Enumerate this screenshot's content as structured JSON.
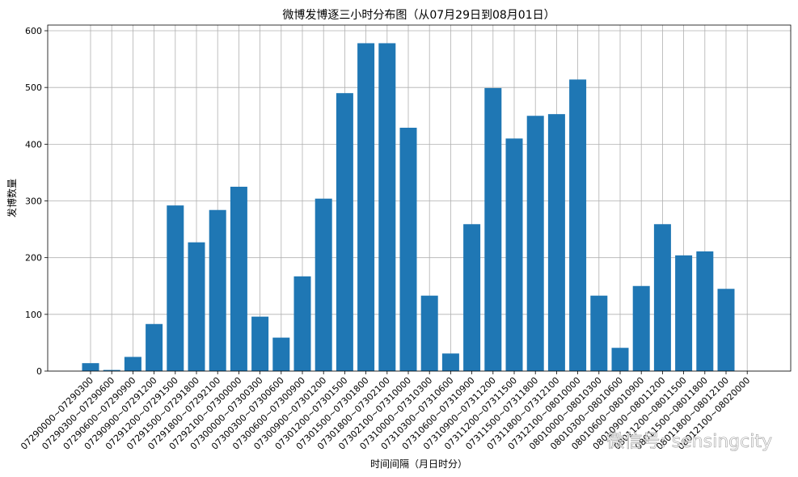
{
  "chart_data": {
    "type": "bar",
    "title": "微博发博逐三小时分布图（从07月29日到08月01日）",
    "xlabel": "时间间隔（月日时分）",
    "ylabel": "发博数量",
    "ylim": [
      0,
      610
    ],
    "yticks": [
      0,
      100,
      200,
      300,
      400,
      500,
      600
    ],
    "grid": true,
    "bar_color": "#1f77b4",
    "categories": [
      "07290000~07290300",
      "07290300~07290600",
      "07290600~07290900",
      "07290900~07291200",
      "07291200~07291500",
      "07291500~07291800",
      "07291800~07292100",
      "07292100~07300000",
      "07300000~07300300",
      "07300300~07300600",
      "07300600~07300900",
      "07300900~07301200",
      "07301200~07301500",
      "07301500~07301800",
      "07301800~07302100",
      "07302100~07310000",
      "07310000~07310300",
      "07310300~07310600",
      "07310600~07310900",
      "07310900~07311200",
      "07311200~07311500",
      "07311500~07311800",
      "07311800~07312100",
      "07312100~08010000",
      "08010000~08010300",
      "08010300~08010600",
      "08010600~08010900",
      "08010900~08011200",
      "08011200~08011500",
      "08011500~08011800",
      "08011800~08012100",
      "08012100~08020000"
    ],
    "values": [
      14,
      2,
      25,
      83,
      292,
      227,
      284,
      325,
      96,
      59,
      167,
      304,
      490,
      578,
      578,
      429,
      133,
      31,
      259,
      499,
      410,
      450,
      453,
      514,
      133,
      41,
      150,
      259,
      204,
      211,
      145,
      0
    ]
  },
  "watermark": {
    "text": "微信号: sensingcity"
  }
}
